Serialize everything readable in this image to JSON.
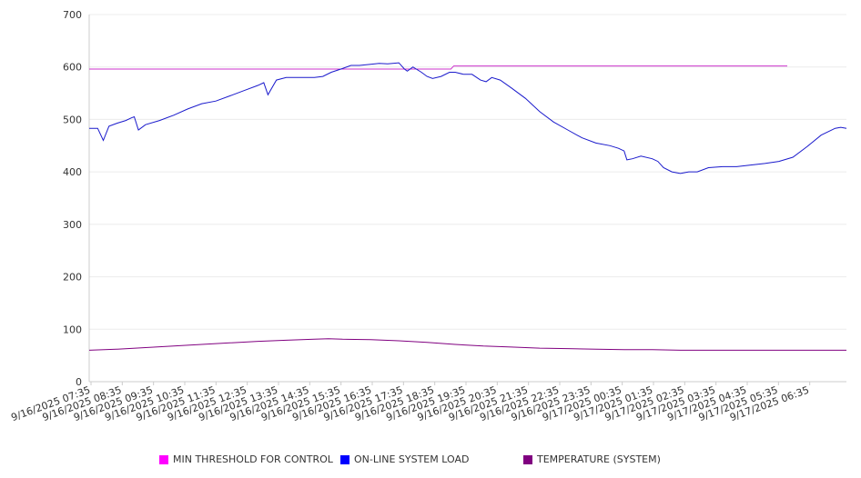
{
  "chart_data": {
    "type": "line",
    "ylim": [
      0,
      700
    ],
    "yticks": [
      0,
      100,
      200,
      300,
      400,
      500,
      600,
      700
    ],
    "grid": true,
    "legend_position": "bottom",
    "categories": [
      "9/16/2025 07:35",
      "9/16/2025 08:35",
      "9/16/2025 09:35",
      "9/16/2025 10:35",
      "9/16/2025 11:35",
      "9/16/2025 12:35",
      "9/16/2025 13:35",
      "9/16/2025 14:35",
      "9/16/2025 15:35",
      "9/16/2025 16:35",
      "9/16/2025 17:35",
      "9/16/2025 18:35",
      "9/16/2025 19:35",
      "9/16/2025 20:35",
      "9/16/2025 21:35",
      "9/16/2025 22:35",
      "9/16/2025 23:35",
      "9/17/2025 00:35",
      "9/17/2025 01:35",
      "9/17/2025 02:35",
      "9/17/2025 03:35",
      "9/17/2025 04:35",
      "9/17/2025 05:35",
      "9/17/2025 06:35"
    ],
    "x_end_hours": 24.8,
    "series": [
      {
        "name": "MIN THRESHOLD FOR CONTROL",
        "color": "#ff00ff",
        "line_color": "#cc33cc",
        "points": [
          [
            0,
            596
          ],
          [
            12.85,
            596
          ],
          [
            12.95,
            602
          ],
          [
            24.8,
            602
          ]
        ]
      },
      {
        "name": "ON-LINE SYSTEM LOAD",
        "color": "#0000ff",
        "line_color": "#1a1acc",
        "points": [
          [
            0,
            483
          ],
          [
            0.3,
            483
          ],
          [
            0.5,
            460
          ],
          [
            0.7,
            487
          ],
          [
            1.0,
            493
          ],
          [
            1.3,
            498
          ],
          [
            1.5,
            503
          ],
          [
            1.6,
            505
          ],
          [
            1.75,
            480
          ],
          [
            2.0,
            490
          ],
          [
            2.5,
            498
          ],
          [
            3.0,
            508
          ],
          [
            3.5,
            520
          ],
          [
            4.0,
            530
          ],
          [
            4.5,
            535
          ],
          [
            5.0,
            545
          ],
          [
            5.5,
            555
          ],
          [
            6.0,
            565
          ],
          [
            6.2,
            570
          ],
          [
            6.35,
            547
          ],
          [
            6.65,
            575
          ],
          [
            7.0,
            580
          ],
          [
            7.5,
            580
          ],
          [
            8.0,
            580
          ],
          [
            8.3,
            582
          ],
          [
            8.6,
            590
          ],
          [
            9.0,
            597
          ],
          [
            9.3,
            603
          ],
          [
            9.6,
            603
          ],
          [
            10.0,
            605
          ],
          [
            10.3,
            607
          ],
          [
            10.6,
            606
          ],
          [
            11.0,
            608
          ],
          [
            11.2,
            596
          ],
          [
            11.3,
            592
          ],
          [
            11.5,
            600
          ],
          [
            11.8,
            590
          ],
          [
            12.0,
            582
          ],
          [
            12.2,
            578
          ],
          [
            12.5,
            582
          ],
          [
            12.8,
            590
          ],
          [
            13.0,
            590
          ],
          [
            13.3,
            586
          ],
          [
            13.6,
            586
          ],
          [
            13.9,
            575
          ],
          [
            14.1,
            572
          ],
          [
            14.3,
            580
          ],
          [
            14.6,
            575
          ],
          [
            15.0,
            560
          ],
          [
            15.5,
            540
          ],
          [
            16.0,
            515
          ],
          [
            16.5,
            495
          ],
          [
            17.0,
            480
          ],
          [
            17.5,
            465
          ],
          [
            18.0,
            455
          ],
          [
            18.5,
            450
          ],
          [
            18.8,
            445
          ],
          [
            19.0,
            440
          ],
          [
            19.1,
            423
          ],
          [
            19.3,
            425
          ],
          [
            19.6,
            430
          ],
          [
            20.0,
            425
          ],
          [
            20.2,
            420
          ],
          [
            20.4,
            408
          ],
          [
            20.7,
            400
          ],
          [
            21.0,
            397
          ],
          [
            21.3,
            400
          ],
          [
            21.6,
            400
          ],
          [
            22.0,
            408
          ],
          [
            22.5,
            410
          ],
          [
            23.0,
            410
          ],
          [
            23.5,
            413
          ],
          [
            24.0,
            416
          ],
          [
            24.5,
            420
          ],
          [
            25.0,
            428
          ],
          [
            25.5,
            448
          ],
          [
            26.0,
            470
          ],
          [
            26.5,
            483
          ],
          [
            26.7,
            485
          ],
          [
            26.9,
            483
          ]
        ]
      },
      {
        "name": "TEMPERATURE (SYSTEM)",
        "color": "#800080",
        "line_color": "#800080",
        "points": [
          [
            0,
            60
          ],
          [
            1.0,
            62
          ],
          [
            2.0,
            65
          ],
          [
            3.0,
            68
          ],
          [
            4.0,
            71
          ],
          [
            5.0,
            74
          ],
          [
            6.0,
            77
          ],
          [
            7.0,
            79
          ],
          [
            8.0,
            81
          ],
          [
            8.5,
            82
          ],
          [
            9.0,
            81
          ],
          [
            10.0,
            80
          ],
          [
            11.0,
            78
          ],
          [
            12.0,
            75
          ],
          [
            13.0,
            71
          ],
          [
            14.0,
            68
          ],
          [
            15.0,
            66
          ],
          [
            16.0,
            64
          ],
          [
            17.0,
            63
          ],
          [
            18.0,
            62
          ],
          [
            19.0,
            61
          ],
          [
            20.0,
            61
          ],
          [
            21.0,
            60
          ],
          [
            22.0,
            60
          ],
          [
            23.0,
            60
          ],
          [
            24.0,
            60
          ],
          [
            25.0,
            60
          ],
          [
            26.0,
            60
          ],
          [
            26.9,
            60
          ]
        ]
      }
    ]
  }
}
